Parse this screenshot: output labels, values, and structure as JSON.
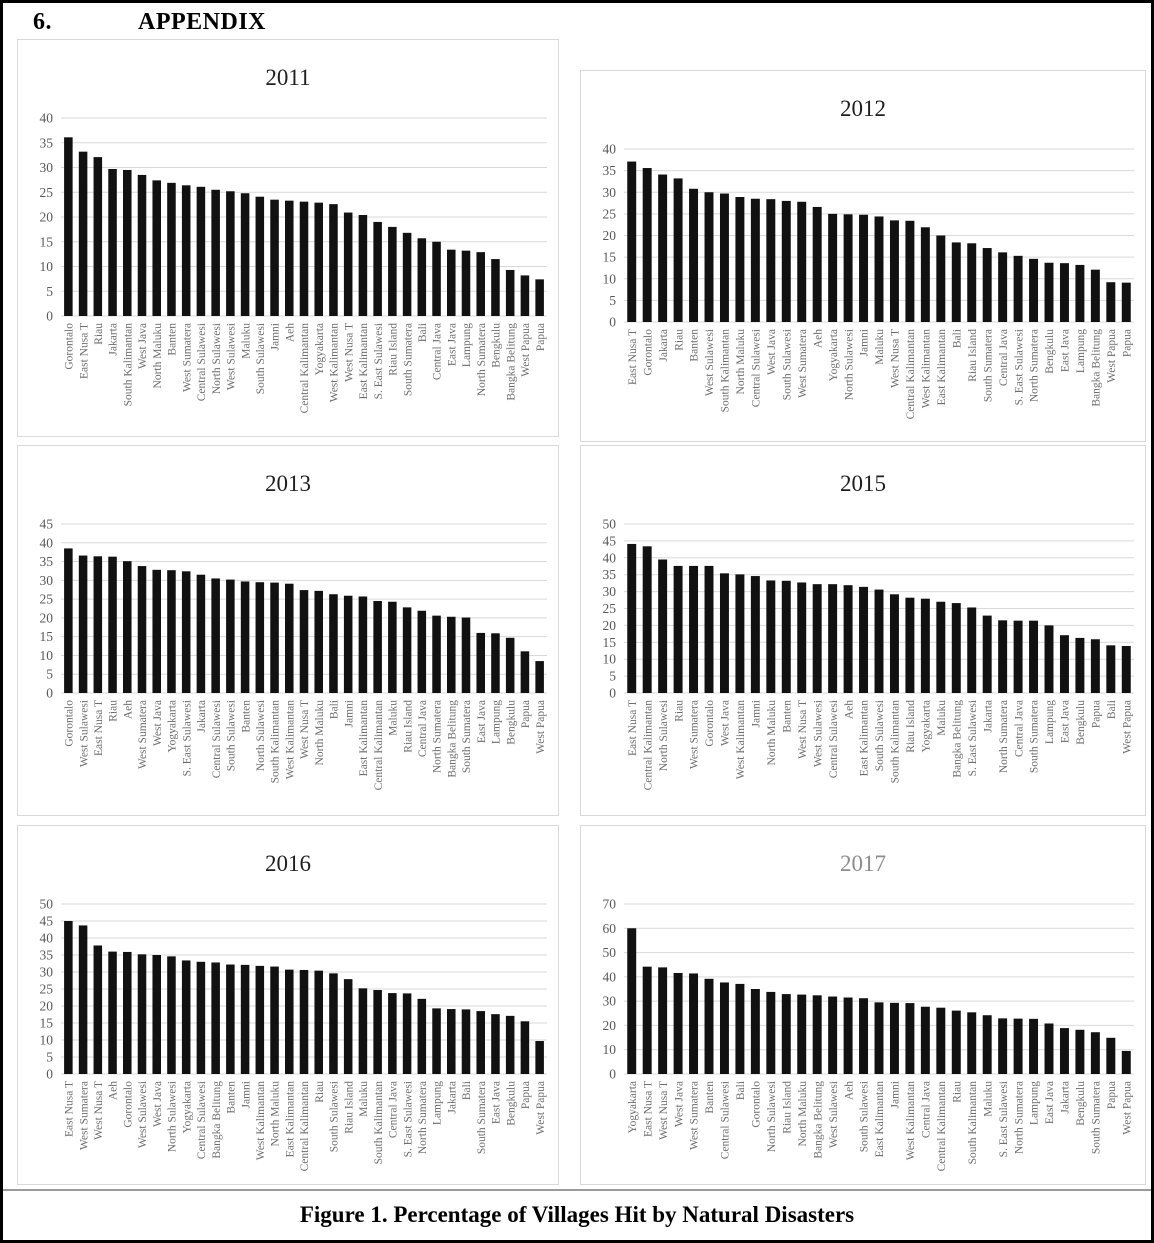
{
  "page": {
    "heading_number": "6.",
    "heading_title": "APPENDIX",
    "caption": "Figure 1. Percentage of Villages Hit by Natural Disasters"
  },
  "colors": {
    "bar": "#111111",
    "grid": "#d9d9d9",
    "axis_label": "#595959",
    "category_label": "#6e6e6e",
    "title": "#1f1f1f",
    "title_muted": "#8c8c8c",
    "chart_border": "#d9d9d9",
    "page_border": "#000000",
    "caption_rule": "#9b9b9b"
  },
  "chart_data": [
    {
      "type": "bar",
      "title": "2011",
      "title_muted": false,
      "xlabel": "",
      "ylabel": "",
      "ylim": [
        0,
        40
      ],
      "ytick_step": 5,
      "grid": true,
      "legend": false,
      "categories": [
        "Gorontalo",
        "East Nusa T",
        "Riau",
        "Jakarta",
        "South Kalimantan",
        "West Java",
        "North Maluku",
        "Banten",
        "West Sumatera",
        "Central Sulawesi",
        "North Sulawesi",
        "West Sulawesi",
        "Maluku",
        "South Sulawesi",
        "Jamni",
        "Aeh",
        "Central Kalimantan",
        "Yogyakarta",
        "West Kalimantan",
        "West Nusa T",
        "East Kalimantan",
        "S. East Sulawesi",
        "Riau Island",
        "South Sumatera",
        "Bali",
        "Central Java",
        "East Java",
        "Lampung",
        "North Sumatera",
        "Bengkulu",
        "Bangka Belitung",
        "West Papua",
        "Papua"
      ],
      "values": [
        36.1,
        33.2,
        32.1,
        29.7,
        29.5,
        28.5,
        27.4,
        26.9,
        26.4,
        26.1,
        25.5,
        25.2,
        24.8,
        24.1,
        23.5,
        23.3,
        23.1,
        22.9,
        22.6,
        20.9,
        20.4,
        19.0,
        18.0,
        16.8,
        15.7,
        15.0,
        13.4,
        13.2,
        12.9,
        11.5,
        9.3,
        8.2,
        7.4
      ]
    },
    {
      "type": "bar",
      "title": "2012",
      "title_muted": false,
      "xlabel": "",
      "ylabel": "",
      "ylim": [
        0,
        40
      ],
      "ytick_step": 5,
      "grid": true,
      "legend": false,
      "categories": [
        "East Nusa T",
        "Gorontalo",
        "Jakarta",
        "Riau",
        "Banten",
        "West Sulawesi",
        "South Kalimantan",
        "North Maluku",
        "Central Sulawesi",
        "West Java",
        "South Sulawesi",
        "West Sumatera",
        "Aeh",
        "Yogyakarta",
        "North Sulawesi",
        "Jamni",
        "Maluku",
        "West Nusa T",
        "Central Kalimantan",
        "West Kalimantan",
        "East Kalimantan",
        "Bali",
        "Riau Island",
        "South Sumatera",
        "Central Java",
        "S. East Sulawesi",
        "North Sumatera",
        "Bengkulu",
        "East Java",
        "Lampung",
        "Bangka Belitung",
        "West Papua",
        "Papua"
      ],
      "values": [
        37.1,
        35.6,
        34.1,
        33.2,
        30.8,
        30.0,
        29.7,
        28.9,
        28.5,
        28.4,
        28.0,
        27.8,
        26.6,
        25.0,
        24.9,
        24.8,
        24.4,
        23.5,
        23.4,
        21.9,
        20.0,
        18.4,
        18.2,
        17.1,
        16.1,
        15.3,
        14.6,
        13.7,
        13.6,
        13.2,
        12.1,
        9.2,
        9.1
      ]
    },
    {
      "type": "bar",
      "title": "2013",
      "title_muted": false,
      "xlabel": "",
      "ylabel": "",
      "ylim": [
        0,
        45
      ],
      "ytick_step": 5,
      "grid": true,
      "legend": false,
      "categories": [
        "Gorontalo",
        "West Sulawesi",
        "East Nusa T",
        "Riau",
        "Aeh",
        "West Sumatera",
        "West Java",
        "Yogyakarta",
        "S. East Sulawesi",
        "Jakarta",
        "Central Sulawesi",
        "South Sulawesi",
        "Banten",
        "North Sulawesi",
        "South Kalimantan",
        "West Kalimantan",
        "West Nusa T",
        "North Maluku",
        "Bali",
        "Jamni",
        "East Kalimantan",
        "Central Kalimantan",
        "Maluku",
        "Riau Island",
        "Central Java",
        "North Sumatera",
        "Bangka Belitung",
        "South Sumatera",
        "East Java",
        "Lampung",
        "Bengkulu",
        "Papua",
        "West Papua"
      ],
      "values": [
        38.5,
        36.6,
        36.4,
        36.3,
        35.1,
        33.8,
        32.8,
        32.7,
        32.4,
        31.5,
        30.5,
        30.2,
        29.7,
        29.5,
        29.4,
        29.1,
        27.4,
        27.2,
        26.3,
        25.9,
        25.7,
        24.5,
        24.3,
        22.8,
        21.9,
        20.6,
        20.3,
        20.1,
        16.0,
        15.9,
        14.7,
        11.1,
        8.5
      ]
    },
    {
      "type": "bar",
      "title": "2015",
      "title_muted": false,
      "xlabel": "",
      "ylabel": "",
      "ylim": [
        0,
        50
      ],
      "ytick_step": 5,
      "grid": true,
      "legend": false,
      "categories": [
        "East Nusa T",
        "Central Kalimantan",
        "North Sulawesi",
        "Riau",
        "West Sumatera",
        "Gorontalo",
        "West Java",
        "West Kalimantan",
        "Jamni",
        "North Maluku",
        "Banten",
        "West Nusa T",
        "West Sulawesi",
        "Central Sulawesi",
        "Aeh",
        "East Kalimantan",
        "South Sulawesi",
        "South Kalimantan",
        "Riau Island",
        "Yogyakarta",
        "Maluku",
        "Bangka Belitung",
        "S. East Sulawesi",
        "Jakarta",
        "North Sumatera",
        "Central Java",
        "South Sumatera",
        "Lampung",
        "East Java",
        "Bengkulu",
        "Papua",
        "Bali",
        "West Papua"
      ],
      "values": [
        44.1,
        43.4,
        39.5,
        37.6,
        37.6,
        37.6,
        35.4,
        35.1,
        34.6,
        33.3,
        33.2,
        32.7,
        32.2,
        32.2,
        31.9,
        31.4,
        30.6,
        29.2,
        28.2,
        27.9,
        27.0,
        26.6,
        25.3,
        22.9,
        21.5,
        21.4,
        21.4,
        20.0,
        17.1,
        16.3,
        15.9,
        14.1,
        13.9
      ]
    },
    {
      "type": "bar",
      "title": "2016",
      "title_muted": false,
      "xlabel": "",
      "ylabel": "",
      "ylim": [
        0,
        50
      ],
      "ytick_step": 5,
      "grid": true,
      "legend": false,
      "categories": [
        "East Nusa T",
        "West Sumatera",
        "West Nusa T",
        "Aeh",
        "Gorontalo",
        "West Sulawesi",
        "West Java",
        "North Sulawesi",
        "Yogyakarta",
        "Central Sulawesi",
        "Bangka Belitung",
        "Banten",
        "Jamni",
        "West Kalimantan",
        "North Maluku",
        "East Kalimantan",
        "Central Kalimantan",
        "Riau",
        "South Sulawesi",
        "Riau Island",
        "Maluku",
        "South Kalimantan",
        "Central Java",
        "S. East Sulawesi",
        "North Sumatera",
        "Lampung",
        "Jakarta",
        "Bali",
        "South Sumatera",
        "East Java",
        "Bengkulu",
        "Papua",
        "West Papua"
      ],
      "values": [
        45.0,
        43.7,
        37.8,
        36.0,
        35.9,
        35.2,
        35.0,
        34.6,
        33.4,
        33.0,
        32.8,
        32.2,
        32.1,
        31.8,
        31.6,
        30.7,
        30.6,
        30.4,
        29.6,
        27.9,
        25.2,
        24.7,
        23.8,
        23.7,
        22.1,
        19.3,
        19.1,
        19.0,
        18.5,
        17.6,
        17.1,
        15.5,
        9.7
      ]
    },
    {
      "type": "bar",
      "title": "2017",
      "title_muted": true,
      "xlabel": "",
      "ylabel": "",
      "ylim": [
        0,
        70
      ],
      "ytick_step": 10,
      "grid": true,
      "legend": false,
      "categories": [
        "Yogyakarta",
        "East Nusa T",
        "West Nusa T",
        "West Java",
        "West Sumatera",
        "Banten",
        "Central Sulawesi",
        "Bali",
        "Gorontalo",
        "North Sulawesi",
        "Riau Island",
        "North Maluku",
        "Bangka Belitung",
        "West Sulawesi",
        "Aeh",
        "South Sulawesi",
        "East Kalimantan",
        "Jamni",
        "West Kalimantan",
        "Central Java",
        "Central Kalimantan",
        "Riau",
        "South Kalimantan",
        "Maluku",
        "S. East Sulawesi",
        "North Sumatera",
        "Lampung",
        "East Java",
        "Jakarta",
        "Bengkulu",
        "South Sumatera",
        "Papua",
        "West Papua"
      ],
      "values": [
        60.0,
        44.2,
        43.9,
        41.6,
        41.4,
        39.2,
        37.7,
        37.1,
        35.0,
        33.8,
        32.9,
        32.7,
        32.4,
        31.9,
        31.5,
        31.2,
        29.5,
        29.3,
        29.2,
        27.7,
        27.3,
        26.1,
        25.4,
        24.2,
        22.9,
        22.8,
        22.7,
        20.8,
        18.9,
        18.2,
        17.2,
        14.9,
        9.5
      ]
    }
  ]
}
